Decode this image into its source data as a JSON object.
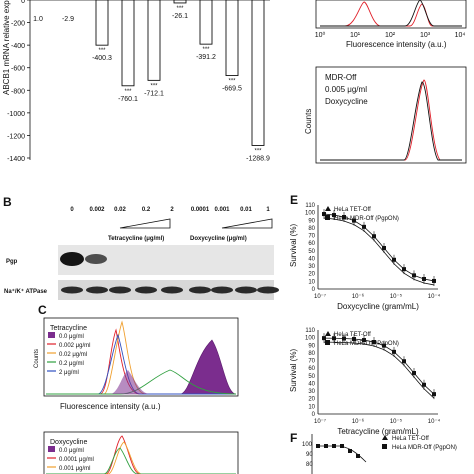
{
  "panel_a": {
    "ylabel": "ABCB1 mRNA relative expression",
    "yticks": [
      "0",
      "-200",
      "-400",
      "-600",
      "-800",
      "-1000",
      "-1200",
      "-1400"
    ],
    "bar_labels": [
      "1.0",
      "-2.9",
      "-400.3",
      "-760.1",
      "-712.1",
      "-26.1",
      "-391.2",
      "-669.5",
      "-1288.9"
    ],
    "stars": "***"
  },
  "panel_top_right": {
    "xlabel": "Fluorescence intensity (a.u.)",
    "xticks": [
      "10⁰",
      "10¹",
      "10²",
      "10³",
      "10⁴"
    ]
  },
  "panel_mdr": {
    "line1": "MDR-Off",
    "line2": "0.005 μg/ml",
    "line3": "Doxycycline",
    "ylabel": "Counts",
    "xlabel": "Fluorescence intensity (a.u.)",
    "xticks": [
      "10⁰",
      "10¹",
      "10²",
      "10³",
      "10⁴"
    ]
  },
  "panel_b": {
    "letter": "B",
    "concentrations": [
      "0",
      "0.002",
      "0.02",
      "0.2",
      "2",
      "0.0001",
      "0.001",
      "0.01",
      "1"
    ],
    "tet_label": "Tetracycline (μg/ml)",
    "dox_label": "Doxycycline (μg/ml)",
    "row1": "Pgp",
    "row2": "Na⁺/K⁺ ATPase"
  },
  "panel_c": {
    "letter": "C",
    "title": "Tetracycline",
    "legend": [
      "0.0 μg/ml",
      "0.002 μg/ml",
      "0.02 μg/ml",
      "0.2 μg/ml",
      "2 μg/ml"
    ],
    "xlabel": "Fluorescence intensity (a.u.)",
    "ylabel": "Counts",
    "title2": "Doxycycline",
    "legend2": [
      "0.0 μg/ml",
      "0.0001 μg/ml",
      "0.001 μg/ml"
    ]
  },
  "panel_e": {
    "letter": "E",
    "ylabel": "Survival (%)",
    "yticks": [
      "110",
      "100",
      "90",
      "80",
      "70",
      "60",
      "50",
      "40",
      "30",
      "20",
      "10",
      "0"
    ],
    "legend": [
      "HeLa TET-Off",
      "HeLa MDR-Off (PgpON)"
    ],
    "xlabel1": "Doxycycline (gram/mL)",
    "xlabel2": "Tetracycline (gram/mL)",
    "xticks1": [
      "10⁻⁷",
      "10⁻⁶",
      "10⁻⁵",
      "10⁻⁴"
    ],
    "xticks2": [
      "10⁻⁷",
      "10⁻⁶",
      "10⁻⁵",
      "10⁻⁴"
    ]
  },
  "panel_f": {
    "letter": "F",
    "legend": [
      "HeLa TET-Off",
      "HeLa MDR-Off (PgpON)"
    ]
  },
  "colors": {
    "purple": "#7b2d8e",
    "red": "#e0202a",
    "orange": "#f0a030",
    "green": "#30a040",
    "blue": "#3050c0"
  }
}
